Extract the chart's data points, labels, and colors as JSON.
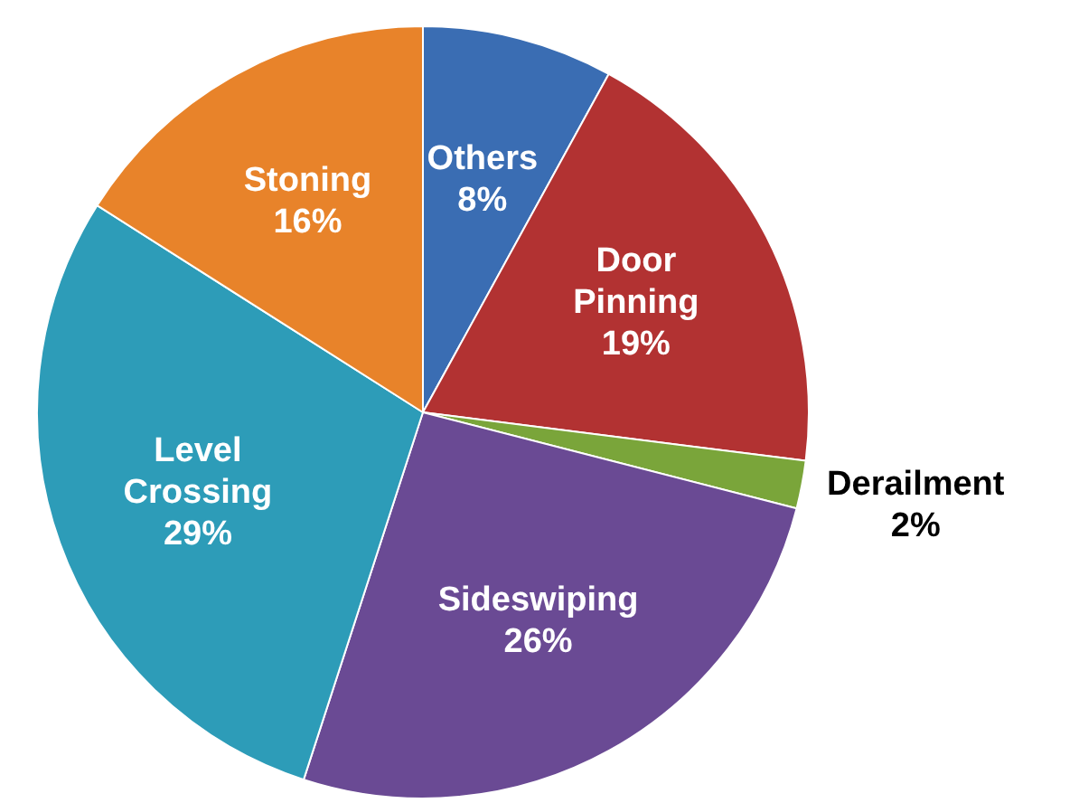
{
  "chart_data": {
    "type": "pie",
    "categories": [
      "Others",
      "Door Pinning",
      "Derailment",
      "Sideswiping",
      "Level Crossing",
      "Stoning"
    ],
    "values": [
      8,
      19,
      2,
      26,
      29,
      16
    ],
    "value_labels": [
      "8%",
      "19%",
      "2%",
      "26%",
      "29%",
      "16%"
    ],
    "colors": [
      "#3a6db3",
      "#b23232",
      "#7aa53a",
      "#6a4a94",
      "#2d9cb8",
      "#e8832a"
    ],
    "legend": false
  }
}
